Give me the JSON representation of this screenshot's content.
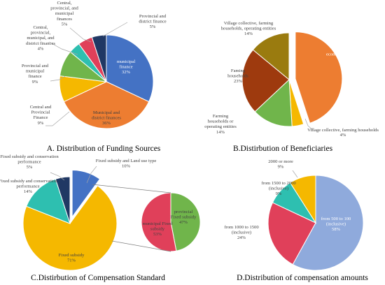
{
  "chart_data": [
    {
      "type": "pie",
      "title": "A. Distribution of Funding Sources",
      "slices": [
        {
          "label": "municipal finance",
          "value": 32,
          "color": "#4472C4"
        },
        {
          "label": "Municipal and district finances",
          "value": 36,
          "color": "#ED7D31"
        },
        {
          "label": "Central and Provincial Finance",
          "value": 9,
          "color": "#F5B800"
        },
        {
          "label": "Provincial and municipal finance",
          "value": 9,
          "color": "#70B54B"
        },
        {
          "label": "Central, provincial, municipal, and district finances",
          "value": 4,
          "color": "#2EBFB0"
        },
        {
          "label": "Central, provincial, and municipal finances",
          "value": 5,
          "color": "#E0405A"
        },
        {
          "label": "Provincial and district finance",
          "value": 5,
          "color": "#203864"
        }
      ]
    },
    {
      "type": "pie",
      "title": "B.Distirbution of Beneficiaries",
      "slices": [
        {
          "label": "Village collective economic organization",
          "value": 45,
          "color": "#ED7D31"
        },
        {
          "label": "Village collective, farming households",
          "value": 4,
          "color": "#F5B800"
        },
        {
          "label": "Farming households or operating entities",
          "value": 14,
          "color": "#70B54B"
        },
        {
          "label": "Faming households",
          "value": 23,
          "color": "#9E3A0E"
        },
        {
          "label": "Village collective, farming households, operating entities",
          "value": 14,
          "color": "#9A7B0F"
        }
      ]
    },
    {
      "type": "pie",
      "title": "C.Distirbution of Compensation Standard",
      "slices": [
        {
          "label": "Fixed subsidy and Land use type",
          "value": 10,
          "color": "#4472C4"
        },
        {
          "label": "Fixed subsidy",
          "value": 71,
          "color": "#F5B800"
        },
        {
          "label": "Fixed subsidy and conservation performance",
          "value": 14,
          "color": "#2EBFB0"
        },
        {
          "label": "Fixed subsidy and conservation performance",
          "value": 5,
          "color": "#203864"
        }
      ],
      "breakdown": [
        {
          "label": "provincial Fixed subsidy",
          "value": 47,
          "color": "#70B54B"
        },
        {
          "label": "municipal Fixed subsidy",
          "value": 53,
          "color": "#E0405A"
        }
      ]
    },
    {
      "type": "pie",
      "title": "D.Distribution of compensation amounts",
      "slices": [
        {
          "label": "from 500 to 100 (inclusive)",
          "value": 58,
          "color": "#8FAADC"
        },
        {
          "label": "from 1000 to 1500 (inclusive)",
          "value": 24,
          "color": "#E0405A"
        },
        {
          "label": "from 1500 to 2000 (inclusive)",
          "value": 9,
          "color": "#2EBFB0"
        },
        {
          "label": "2000 or more",
          "value": 9,
          "color": "#F5B800"
        }
      ]
    }
  ],
  "text": {
    "a_title": "A. Distribution of Funding Sources",
    "b_title": "B.Distirbution of Beneficiaries",
    "c_title": "C.Distirbution of Compensation Standard",
    "d_title": "D.Distribution of compensation amounts",
    "a_l1": [
      "municipal",
      "finance",
      "32%"
    ],
    "a_l2": [
      "Municipal and",
      "district finances",
      "36%"
    ],
    "a_l3": [
      "Central and",
      "Provincial",
      "Finance",
      "9%"
    ],
    "a_l4": [
      "Provincial and",
      "municipal",
      "finance",
      "9%"
    ],
    "a_l5": [
      "Central,",
      "provincial,",
      "municipal, and",
      "district finances",
      "4%"
    ],
    "a_l6": [
      "Central,",
      "provincial, and",
      "municipal",
      "finances",
      "5%"
    ],
    "a_l7": [
      "Provincial and",
      "district finance",
      "5%"
    ],
    "b_l1": [
      "Village collective",
      "economic organization",
      "45%"
    ],
    "b_l2": [
      "Village collective, farming households",
      "4%"
    ],
    "b_l3": [
      "Farming",
      "households or",
      "operating entities",
      "14%"
    ],
    "b_l4": [
      "Faming",
      "households",
      "23%"
    ],
    "b_l5": [
      "Village collective, farming",
      "households, operating entities",
      "14%"
    ],
    "c_l1": [
      "Fixed subsidy and Land use type",
      "10%"
    ],
    "c_l2": [
      "Fixed subsidy",
      "71%"
    ],
    "c_l3": [
      "Fixed subsidy and conservation",
      "performance",
      "14%"
    ],
    "c_l4": [
      "Fixed subsidy and conservation",
      "performance",
      "5%"
    ],
    "c_l5": [
      "provincial",
      "Fixed subsidy",
      "47%"
    ],
    "c_l6": [
      "municipal Fixed",
      "subsidy",
      "53%"
    ],
    "d_l1": [
      "from 500 to 100",
      "(inclusive)",
      "58%"
    ],
    "d_l2": [
      "from 1000 to 1500",
      "(inclusive)",
      "24%"
    ],
    "d_l3": [
      "from 1500 to 2000",
      "(inclusive)",
      "9%"
    ],
    "d_l4": [
      "2000 or more",
      "9%"
    ]
  }
}
